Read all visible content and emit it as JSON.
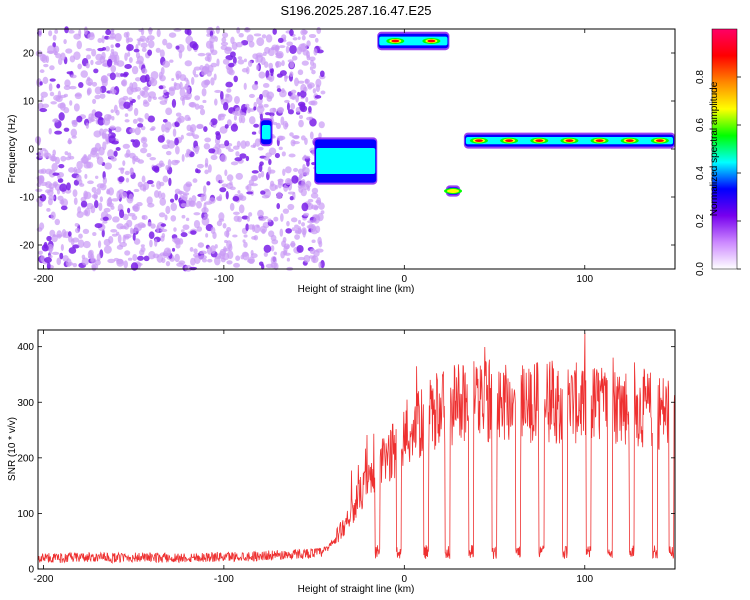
{
  "chart_data": [
    {
      "type": "heatmap",
      "title": "S196.2025.287.16.47.E25",
      "xlabel": "Height of straight line (km)",
      "ylabel": "Frequency (Hz)",
      "xlim": [
        -203,
        150
      ],
      "ylim": [
        -25,
        25
      ],
      "x_ticks": [
        -200,
        -100,
        0,
        100
      ],
      "y_ticks": [
        -20,
        -10,
        0,
        10,
        20
      ],
      "colorbar": {
        "label": "Normalized spectral amplitude",
        "range": [
          0,
          1
        ],
        "ticks": [
          0.0,
          0.2,
          0.4,
          0.6,
          0.8
        ],
        "tick_labels": [
          "0.0",
          "0.2",
          "0.4",
          "0.6",
          "0.8"
        ],
        "colors": [
          "#ffffff",
          "#cc88ff",
          "#7700ee",
          "#0000ff",
          "#00ffff",
          "#00ff00",
          "#ffff00",
          "#ff8800",
          "#ff0000",
          "#ff0066"
        ]
      },
      "features": [
        {
          "x_range": [
            -203,
            -45
          ],
          "freq_range": [
            -25,
            25
          ],
          "intensity": 0.1,
          "kind": "noise"
        },
        {
          "x_range": [
            -80,
            -73
          ],
          "freq_range": [
            1,
            6
          ],
          "intensity": 0.3,
          "kind": "blob"
        },
        {
          "x_range": [
            -50,
            -15
          ],
          "freq_range": [
            -7,
            2
          ],
          "intensity": 0.35,
          "kind": "drifting-tone"
        },
        {
          "x_range": [
            -15,
            25
          ],
          "freq_range": [
            21,
            24
          ],
          "intensity": 0.75,
          "kind": "tone"
        },
        {
          "x_range": [
            23,
            31
          ],
          "freq_range": [
            -9.5,
            -8
          ],
          "intensity": 0.5,
          "kind": "blob"
        },
        {
          "x_range": [
            33,
            150
          ],
          "freq_range": [
            0.5,
            3
          ],
          "intensity": 0.7,
          "kind": "tone"
        }
      ]
    },
    {
      "type": "line",
      "xlabel": "Height of straight line (km)",
      "ylabel": "SNR (10 * v/v)",
      "xlim": [
        -203,
        150
      ],
      "ylim": [
        0,
        430
      ],
      "x_ticks": [
        -200,
        -100,
        0,
        100
      ],
      "y_ticks": [
        0,
        100,
        200,
        300,
        400
      ],
      "series": [
        {
          "name": "SNR",
          "color": "#ee3030",
          "x": [
            -203,
            -190,
            -175,
            -160,
            -145,
            -130,
            -115,
            -100,
            -85,
            -70,
            -60,
            -50,
            -45,
            -40,
            -35,
            -30,
            -25,
            -20,
            -15,
            -10,
            -5,
            0,
            5,
            10,
            15,
            20,
            25,
            30,
            35,
            40,
            50,
            60,
            70,
            80,
            90,
            100,
            110,
            120,
            130,
            140,
            150
          ],
          "values": [
            20,
            20,
            21,
            20,
            21,
            20,
            21,
            22,
            23,
            25,
            27,
            29,
            30,
            45,
            70,
            100,
            130,
            155,
            175,
            200,
            215,
            235,
            250,
            262,
            275,
            290,
            295,
            300,
            305,
            305,
            305,
            303,
            300,
            300,
            298,
            297,
            296,
            295,
            290,
            285,
            280
          ]
        }
      ],
      "dips_x": [
        -15,
        -3,
        12,
        24,
        37,
        50,
        63,
        76,
        89,
        102,
        114,
        126,
        139,
        148
      ],
      "dip_value": 18
    }
  ]
}
